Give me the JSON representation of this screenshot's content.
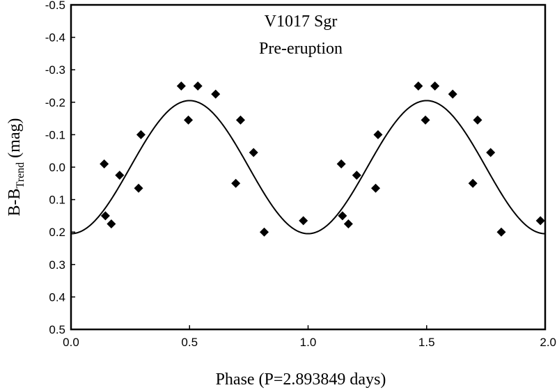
{
  "chart_data": {
    "type": "scatter",
    "annotation": [
      "V1017 Sgr",
      "Pre-eruption"
    ],
    "xlabel": "Phase (P=2.893849 days)",
    "ylabel": {
      "main": "B-B",
      "subscript": "Trend",
      "suffix": " (mag)"
    },
    "xlim": [
      0.0,
      2.0
    ],
    "ylim": [
      0.5,
      -0.5
    ],
    "y_inverted": true,
    "x_ticks": [
      "0.0",
      "0.5",
      "1.0",
      "1.5",
      "2.0"
    ],
    "x_tick_values": [
      0.0,
      0.5,
      1.0,
      1.5,
      2.0
    ],
    "y_ticks": [
      "-0.5",
      "-0.4",
      "-0.3",
      "-0.2",
      "-0.1",
      "0.0",
      "0.1",
      "0.2",
      "0.3",
      "0.4",
      "0.5"
    ],
    "y_tick_values": [
      -0.5,
      -0.4,
      -0.3,
      -0.2,
      -0.1,
      0.0,
      0.1,
      0.2,
      0.3,
      0.4,
      0.5
    ],
    "grid": false,
    "series": [
      {
        "marker": "diamond",
        "color": "#000000",
        "points": [
          {
            "x": 0.14,
            "y": -0.01
          },
          {
            "x": 0.145,
            "y": 0.15
          },
          {
            "x": 0.17,
            "y": 0.175
          },
          {
            "x": 0.205,
            "y": 0.025
          },
          {
            "x": 0.285,
            "y": 0.065
          },
          {
            "x": 0.295,
            "y": -0.1
          },
          {
            "x": 0.465,
            "y": -0.25
          },
          {
            "x": 0.495,
            "y": -0.145
          },
          {
            "x": 0.535,
            "y": -0.25
          },
          {
            "x": 0.61,
            "y": -0.225
          },
          {
            "x": 0.695,
            "y": 0.05
          },
          {
            "x": 0.715,
            "y": -0.145
          },
          {
            "x": 0.77,
            "y": -0.045
          },
          {
            "x": 0.815,
            "y": 0.2
          },
          {
            "x": 0.98,
            "y": 0.165
          },
          {
            "x": 1.14,
            "y": -0.01
          },
          {
            "x": 1.145,
            "y": 0.15
          },
          {
            "x": 1.17,
            "y": 0.175
          },
          {
            "x": 1.205,
            "y": 0.025
          },
          {
            "x": 1.285,
            "y": 0.065
          },
          {
            "x": 1.295,
            "y": -0.1
          },
          {
            "x": 1.465,
            "y": -0.25
          },
          {
            "x": 1.495,
            "y": -0.145
          },
          {
            "x": 1.535,
            "y": -0.25
          },
          {
            "x": 1.61,
            "y": -0.225
          },
          {
            "x": 1.695,
            "y": 0.05
          },
          {
            "x": 1.715,
            "y": -0.145
          },
          {
            "x": 1.77,
            "y": -0.045
          },
          {
            "x": 1.815,
            "y": 0.2
          },
          {
            "x": 1.98,
            "y": 0.165
          }
        ]
      },
      {
        "type": "line",
        "color": "#000000",
        "fit": {
          "form": "sinusoid",
          "mean": 0.0,
          "amplitude": 0.205,
          "period": 1.0,
          "min_at_phase": 0.5
        }
      }
    ]
  }
}
